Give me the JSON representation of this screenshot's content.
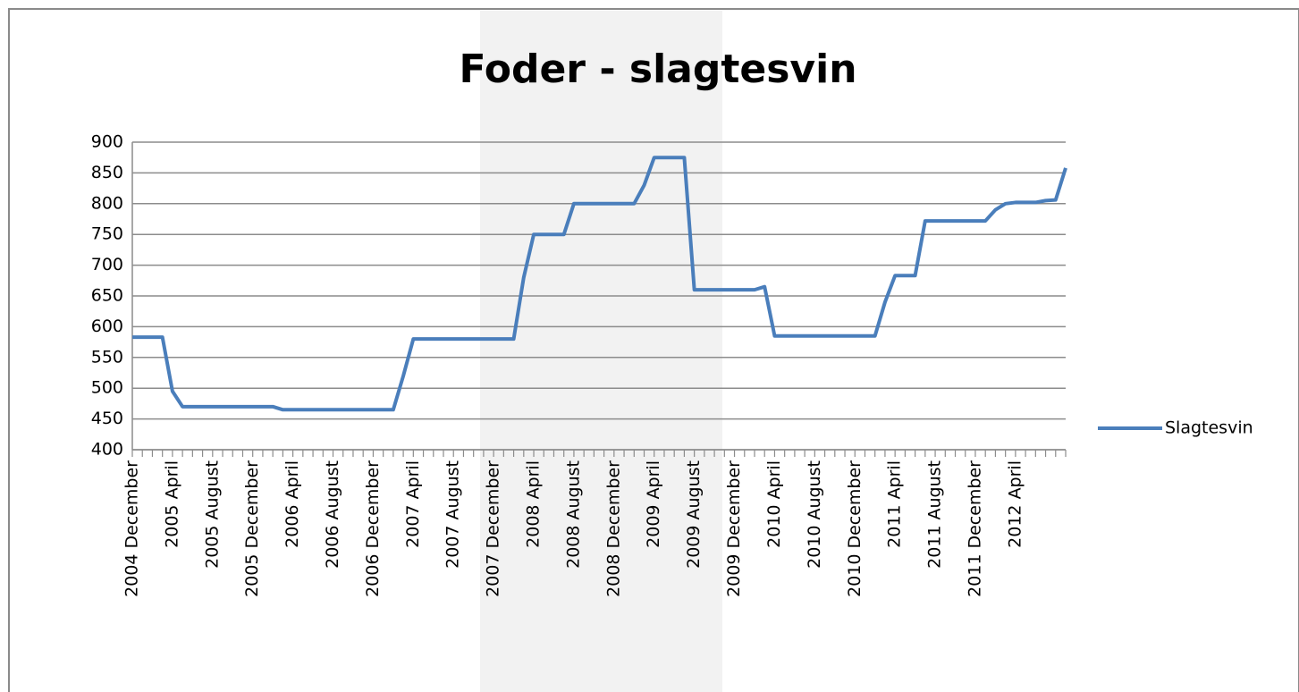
{
  "chart_data": {
    "type": "line",
    "title": "Foder - slagtesvin",
    "categories": [
      "2004 December",
      null,
      null,
      null,
      "2005 April",
      null,
      null,
      null,
      "2005 August",
      null,
      null,
      null,
      "2005 December",
      null,
      null,
      null,
      "2006 April",
      null,
      null,
      null,
      "2006 August",
      null,
      null,
      null,
      "2006 December",
      null,
      null,
      null,
      "2007 April",
      null,
      null,
      null,
      "2007 August",
      null,
      null,
      null,
      "2007 December",
      null,
      null,
      null,
      "2008 April",
      null,
      null,
      null,
      "2008 August",
      null,
      null,
      null,
      "2008 December",
      null,
      null,
      null,
      "2009 April",
      null,
      null,
      null,
      "2009 August",
      null,
      null,
      null,
      "2009 December",
      null,
      null,
      null,
      "2010 April",
      null,
      null,
      null,
      "2010 August",
      null,
      null,
      null,
      "2010 December",
      null,
      null,
      null,
      "2011 April",
      null,
      null,
      null,
      "2011 August",
      null,
      null,
      null,
      "2011 December",
      null,
      null,
      null,
      "2012 April",
      null,
      null,
      null,
      null,
      null
    ],
    "series": [
      {
        "name": "Slagtesvin",
        "color": "#4a7ebb",
        "values": [
          583,
          583,
          583,
          583,
          495,
          470,
          470,
          470,
          470,
          470,
          470,
          470,
          470,
          470,
          470,
          465,
          465,
          465,
          465,
          465,
          465,
          465,
          465,
          465,
          465,
          465,
          465,
          520,
          580,
          580,
          580,
          580,
          580,
          580,
          580,
          580,
          580,
          580,
          580,
          680,
          750,
          750,
          750,
          750,
          800,
          800,
          800,
          800,
          800,
          800,
          800,
          830,
          875,
          875,
          875,
          875,
          660,
          660,
          660,
          660,
          660,
          660,
          660,
          665,
          585,
          585,
          585,
          585,
          585,
          585,
          585,
          585,
          585,
          585,
          585,
          640,
          683,
          683,
          683,
          772,
          772,
          772,
          772,
          772,
          772,
          772,
          790,
          800,
          802,
          802,
          802,
          805,
          806,
          858
        ]
      }
    ],
    "ylim": [
      400,
      900
    ],
    "yticks": [
      400,
      450,
      500,
      550,
      600,
      650,
      700,
      750,
      800,
      850,
      900
    ],
    "grid": true,
    "legend": "right"
  }
}
